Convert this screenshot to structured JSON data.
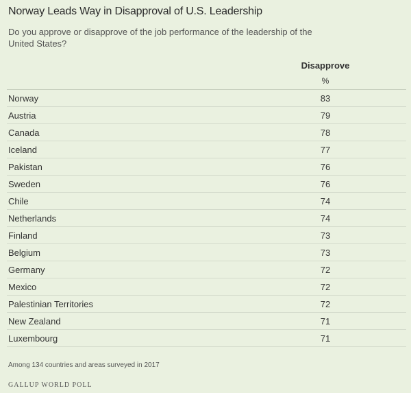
{
  "chart_data": {
    "type": "table",
    "title": "Norway Leads Way in Disapproval of U.S. Leadership",
    "subtitle": "Do you approve or disapprove of the job performance of the leadership of the United States?",
    "column_header": "Disapprove",
    "unit": "%",
    "rows": [
      {
        "country": "Norway",
        "value": 83
      },
      {
        "country": "Austria",
        "value": 79
      },
      {
        "country": "Canada",
        "value": 78
      },
      {
        "country": "Iceland",
        "value": 77
      },
      {
        "country": "Pakistan",
        "value": 76
      },
      {
        "country": "Sweden",
        "value": 76
      },
      {
        "country": "Chile",
        "value": 74
      },
      {
        "country": "Netherlands",
        "value": 74
      },
      {
        "country": "Finland",
        "value": 73
      },
      {
        "country": "Belgium",
        "value": 73
      },
      {
        "country": "Germany",
        "value": 72
      },
      {
        "country": "Mexico",
        "value": 72
      },
      {
        "country": "Palestinian Territories",
        "value": 72
      },
      {
        "country": "New Zealand",
        "value": 71
      },
      {
        "country": "Luxembourg",
        "value": 71
      }
    ],
    "note": "Among 134 countries and areas surveyed in 2017",
    "source": "GALLUP WORLD POLL"
  },
  "colors": {
    "background": "#eaf1e0",
    "rule": "#d3dacb",
    "text": "#333333"
  }
}
